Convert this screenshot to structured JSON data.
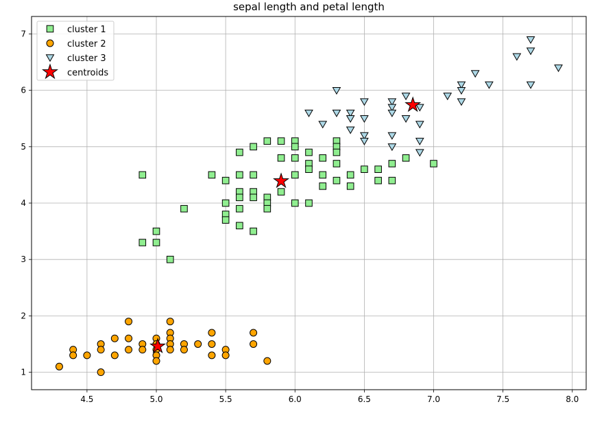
{
  "chart_data": {
    "type": "scatter",
    "title": "sepal length and  petal length",
    "xlabel": "",
    "ylabel": "",
    "xlim": [
      4.1,
      8.1
    ],
    "ylim": [
      0.69,
      7.31
    ],
    "xticks": [
      4.5,
      5.0,
      5.5,
      6.0,
      6.5,
      7.0,
      7.5,
      8.0
    ],
    "yticks": [
      1,
      2,
      3,
      4,
      5,
      6,
      7
    ],
    "grid": true,
    "legend_position": "top-left",
    "series": [
      {
        "name": "cluster 1",
        "marker": "square",
        "color": "#90ee90",
        "points": [
          [
            4.9,
            4.5
          ],
          [
            4.9,
            3.3
          ],
          [
            5.0,
            3.5
          ],
          [
            5.0,
            3.3
          ],
          [
            5.1,
            3.0
          ],
          [
            5.2,
            3.9
          ],
          [
            5.4,
            4.5
          ],
          [
            5.5,
            4.4
          ],
          [
            5.5,
            4.0
          ],
          [
            5.5,
            3.8
          ],
          [
            5.5,
            3.7
          ],
          [
            5.6,
            4.9
          ],
          [
            5.6,
            4.5
          ],
          [
            5.6,
            4.2
          ],
          [
            5.6,
            4.1
          ],
          [
            5.6,
            3.9
          ],
          [
            5.6,
            3.6
          ],
          [
            5.7,
            5.0
          ],
          [
            5.7,
            4.5
          ],
          [
            5.7,
            4.2
          ],
          [
            5.7,
            4.1
          ],
          [
            5.7,
            3.5
          ],
          [
            5.8,
            5.1
          ],
          [
            5.8,
            4.1
          ],
          [
            5.8,
            4.0
          ],
          [
            5.8,
            3.9
          ],
          [
            5.9,
            5.1
          ],
          [
            5.9,
            4.8
          ],
          [
            5.9,
            4.2
          ],
          [
            6.0,
            5.1
          ],
          [
            6.0,
            5.0
          ],
          [
            6.0,
            4.8
          ],
          [
            6.0,
            4.5
          ],
          [
            6.0,
            4.0
          ],
          [
            6.1,
            4.9
          ],
          [
            6.1,
            4.7
          ],
          [
            6.1,
            4.6
          ],
          [
            6.1,
            4.0
          ],
          [
            6.2,
            4.8
          ],
          [
            6.2,
            4.5
          ],
          [
            6.2,
            4.3
          ],
          [
            6.3,
            5.1
          ],
          [
            6.3,
            5.0
          ],
          [
            6.3,
            4.9
          ],
          [
            6.3,
            4.7
          ],
          [
            6.3,
            4.4
          ],
          [
            6.4,
            4.5
          ],
          [
            6.4,
            4.3
          ],
          [
            6.5,
            4.6
          ],
          [
            6.6,
            4.6
          ],
          [
            6.6,
            4.4
          ],
          [
            6.7,
            4.7
          ],
          [
            6.7,
            4.4
          ],
          [
            6.8,
            4.8
          ],
          [
            7.0,
            4.7
          ]
        ]
      },
      {
        "name": "cluster 2",
        "marker": "circle",
        "color": "#ffa500",
        "points": [
          [
            4.3,
            1.1
          ],
          [
            4.4,
            1.4
          ],
          [
            4.4,
            1.3
          ],
          [
            4.5,
            1.3
          ],
          [
            4.6,
            1.5
          ],
          [
            4.6,
            1.4
          ],
          [
            4.6,
            1.0
          ],
          [
            4.7,
            1.6
          ],
          [
            4.7,
            1.3
          ],
          [
            4.8,
            1.9
          ],
          [
            4.8,
            1.6
          ],
          [
            4.8,
            1.4
          ],
          [
            4.9,
            1.5
          ],
          [
            4.9,
            1.4
          ],
          [
            5.0,
            1.6
          ],
          [
            5.0,
            1.5
          ],
          [
            5.0,
            1.4
          ],
          [
            5.0,
            1.3
          ],
          [
            5.0,
            1.2
          ],
          [
            5.1,
            1.9
          ],
          [
            5.1,
            1.7
          ],
          [
            5.1,
            1.6
          ],
          [
            5.1,
            1.5
          ],
          [
            5.1,
            1.4
          ],
          [
            5.2,
            1.5
          ],
          [
            5.2,
            1.4
          ],
          [
            5.3,
            1.5
          ],
          [
            5.4,
            1.7
          ],
          [
            5.4,
            1.5
          ],
          [
            5.4,
            1.3
          ],
          [
            5.5,
            1.4
          ],
          [
            5.5,
            1.3
          ],
          [
            5.7,
            1.7
          ],
          [
            5.7,
            1.5
          ],
          [
            5.8,
            1.2
          ]
        ]
      },
      {
        "name": "cluster 3",
        "marker": "triangle-down",
        "color": "#add8e6",
        "points": [
          [
            6.1,
            5.6
          ],
          [
            6.2,
            5.4
          ],
          [
            6.3,
            6.0
          ],
          [
            6.3,
            5.6
          ],
          [
            6.4,
            5.6
          ],
          [
            6.4,
            5.5
          ],
          [
            6.4,
            5.3
          ],
          [
            6.5,
            5.8
          ],
          [
            6.5,
            5.5
          ],
          [
            6.5,
            5.2
          ],
          [
            6.5,
            5.1
          ],
          [
            6.7,
            5.8
          ],
          [
            6.7,
            5.7
          ],
          [
            6.7,
            5.6
          ],
          [
            6.7,
            5.2
          ],
          [
            6.7,
            5.0
          ],
          [
            6.8,
            5.9
          ],
          [
            6.8,
            5.5
          ],
          [
            6.9,
            5.7
          ],
          [
            6.9,
            5.4
          ],
          [
            6.9,
            5.1
          ],
          [
            6.9,
            4.9
          ],
          [
            7.1,
            5.9
          ],
          [
            7.2,
            6.1
          ],
          [
            7.2,
            6.0
          ],
          [
            7.2,
            5.8
          ],
          [
            7.3,
            6.3
          ],
          [
            7.4,
            6.1
          ],
          [
            7.6,
            6.6
          ],
          [
            7.7,
            6.9
          ],
          [
            7.7,
            6.7
          ],
          [
            7.7,
            6.1
          ],
          [
            7.9,
            6.4
          ]
        ]
      },
      {
        "name": "centroids",
        "marker": "star",
        "color": "#ff0000",
        "points": [
          [
            5.9,
            4.39
          ],
          [
            5.01,
            1.46
          ],
          [
            6.85,
            5.74
          ]
        ]
      }
    ]
  }
}
